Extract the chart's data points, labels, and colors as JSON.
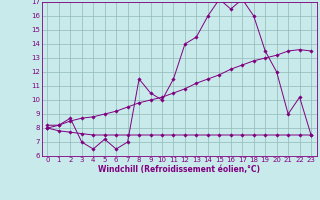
{
  "line1_x": [
    0,
    1,
    2,
    3,
    4,
    5,
    6,
    7,
    8,
    9,
    10,
    11,
    12,
    13,
    14,
    15,
    16,
    17,
    18,
    19,
    20,
    21,
    22,
    23
  ],
  "line1_y": [
    8.2,
    8.2,
    8.7,
    7.0,
    6.5,
    7.2,
    6.5,
    7.0,
    11.5,
    10.5,
    10.0,
    11.5,
    14.0,
    14.5,
    16.0,
    17.2,
    16.5,
    17.2,
    16.0,
    13.5,
    12.0,
    9.0,
    10.2,
    7.5
  ],
  "line2_x": [
    0,
    1,
    2,
    3,
    4,
    5,
    6,
    7,
    8,
    9,
    10,
    11,
    12,
    13,
    14,
    15,
    16,
    17,
    18,
    19,
    20,
    21,
    22,
    23
  ],
  "line2_y": [
    8.0,
    8.2,
    8.5,
    8.7,
    8.8,
    9.0,
    9.2,
    9.5,
    9.8,
    10.0,
    10.2,
    10.5,
    10.8,
    11.2,
    11.5,
    11.8,
    12.2,
    12.5,
    12.8,
    13.0,
    13.2,
    13.5,
    13.6,
    13.5
  ],
  "line3_x": [
    0,
    1,
    2,
    3,
    4,
    5,
    6,
    7,
    8,
    9,
    10,
    11,
    12,
    13,
    14,
    15,
    16,
    17,
    18,
    19,
    20,
    21,
    22,
    23
  ],
  "line3_y": [
    8.0,
    7.8,
    7.7,
    7.6,
    7.5,
    7.5,
    7.5,
    7.5,
    7.5,
    7.5,
    7.5,
    7.5,
    7.5,
    7.5,
    7.5,
    7.5,
    7.5,
    7.5,
    7.5,
    7.5,
    7.5,
    7.5,
    7.5,
    7.5
  ],
  "line_color": "#800080",
  "bg_color": "#c8eaea",
  "grid_color": "#90b8b8",
  "axis_color": "#800080",
  "xlabel": "Windchill (Refroidissement éolien,°C)",
  "xlim": [
    -0.5,
    23.5
  ],
  "ylim": [
    6,
    17
  ],
  "xticks": [
    0,
    1,
    2,
    3,
    4,
    5,
    6,
    7,
    8,
    9,
    10,
    11,
    12,
    13,
    14,
    15,
    16,
    17,
    18,
    19,
    20,
    21,
    22,
    23
  ],
  "yticks": [
    6,
    7,
    8,
    9,
    10,
    11,
    12,
    13,
    14,
    15,
    16,
    17
  ],
  "tick_fontsize": 5,
  "xlabel_fontsize": 5.5,
  "lw": 0.7,
  "ms": 1.8
}
